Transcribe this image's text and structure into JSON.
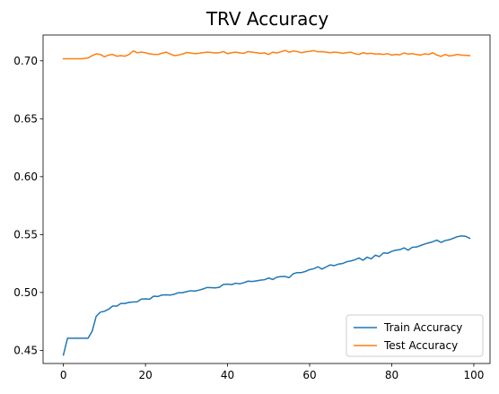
{
  "chart_data": {
    "type": "line",
    "title": "TRV Accuracy",
    "xlabel": "",
    "ylabel": "",
    "xlim": [
      -4.95,
      103.95
    ],
    "ylim": [
      0.4387,
      0.7223
    ],
    "x_ticks": [
      0,
      20,
      40,
      60,
      80,
      100
    ],
    "y_ticks": [
      0.45,
      0.5,
      0.55,
      0.6,
      0.65,
      0.7
    ],
    "grid": false,
    "legend_position": "lower right",
    "series": [
      {
        "name": "Train Accuracy",
        "color": "#1f77b4",
        "values": [
          0.446,
          0.4605,
          0.4605,
          0.4605,
          0.4605,
          0.4605,
          0.4605,
          0.4665,
          0.4795,
          0.483,
          0.4838,
          0.4855,
          0.4883,
          0.4882,
          0.4905,
          0.4905,
          0.4915,
          0.4918,
          0.492,
          0.4943,
          0.4945,
          0.4942,
          0.4968,
          0.4965,
          0.4978,
          0.498,
          0.4978,
          0.4985,
          0.4998,
          0.4998,
          0.5007,
          0.5015,
          0.5012,
          0.502,
          0.503,
          0.5043,
          0.5042,
          0.504,
          0.5045,
          0.507,
          0.5072,
          0.5068,
          0.508,
          0.5075,
          0.5085,
          0.5098,
          0.5095,
          0.51,
          0.5107,
          0.511,
          0.5125,
          0.5112,
          0.5132,
          0.5138,
          0.5138,
          0.5128,
          0.5162,
          0.5172,
          0.5172,
          0.5182,
          0.5198,
          0.5205,
          0.5222,
          0.5202,
          0.522,
          0.5238,
          0.5232,
          0.5245,
          0.525,
          0.5265,
          0.5272,
          0.5282,
          0.5298,
          0.5278,
          0.5305,
          0.529,
          0.5322,
          0.531,
          0.5342,
          0.5338,
          0.5355,
          0.5365,
          0.537,
          0.5385,
          0.5365,
          0.539,
          0.5392,
          0.5405,
          0.5418,
          0.5428,
          0.5438,
          0.5452,
          0.5432,
          0.5448,
          0.5455,
          0.5468,
          0.5482,
          0.5488,
          0.5485,
          0.5468
        ]
      },
      {
        "name": "Test Accuracy",
        "color": "#ff7f0e",
        "values": [
          0.7018,
          0.7018,
          0.7018,
          0.7018,
          0.7018,
          0.702,
          0.7025,
          0.7045,
          0.706,
          0.7055,
          0.7035,
          0.705,
          0.7055,
          0.704,
          0.7045,
          0.704,
          0.7055,
          0.7085,
          0.707,
          0.7075,
          0.707,
          0.706,
          0.7055,
          0.7055,
          0.7065,
          0.7075,
          0.706,
          0.7045,
          0.705,
          0.7058,
          0.7072,
          0.7068,
          0.7062,
          0.7065,
          0.707,
          0.7075,
          0.7072,
          0.7068,
          0.707,
          0.708,
          0.7062,
          0.707,
          0.7075,
          0.7068,
          0.7065,
          0.708,
          0.7075,
          0.707,
          0.7065,
          0.7068,
          0.7055,
          0.7075,
          0.7068,
          0.7078,
          0.709,
          0.7075,
          0.7085,
          0.708,
          0.707,
          0.7078,
          0.7082,
          0.7088,
          0.7078,
          0.708,
          0.7075,
          0.707,
          0.7075,
          0.7072,
          0.7065,
          0.707,
          0.7075,
          0.7062,
          0.7055,
          0.707,
          0.7062,
          0.7065,
          0.7058,
          0.706,
          0.7055,
          0.7062,
          0.705,
          0.7055,
          0.7052,
          0.7068,
          0.7058,
          0.7062,
          0.7055,
          0.705,
          0.706,
          0.7055,
          0.707,
          0.705,
          0.7038,
          0.7055,
          0.7042,
          0.7048,
          0.7055,
          0.705,
          0.7048,
          0.7045
        ]
      }
    ]
  }
}
